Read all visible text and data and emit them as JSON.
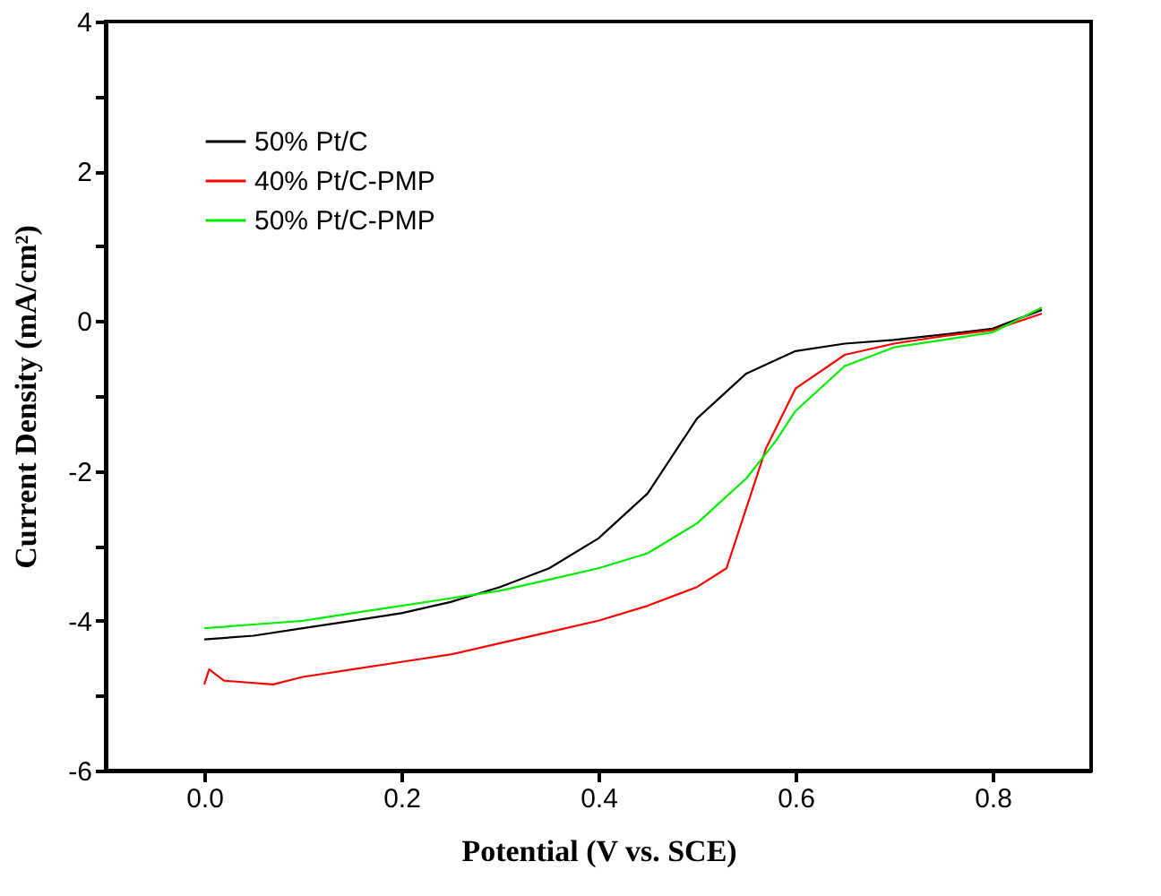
{
  "chart_data": {
    "type": "line",
    "xlabel": "Potential (V vs. SCE)",
    "ylabel": "Current Density (mA/cm²)",
    "xlim": [
      -0.1,
      0.9
    ],
    "xticks": [
      {
        "value": 0,
        "label": "0.0"
      },
      0.2,
      0.4,
      0.6,
      0.8
    ],
    "ylim": [
      -6,
      4
    ],
    "yticks": [
      -6,
      {
        "value": -5,
        "label": null
      },
      -4,
      {
        "value": -3,
        "label": null
      },
      -2,
      {
        "value": -1,
        "label": null
      },
      0,
      {
        "value": 1,
        "label": null
      },
      2,
      {
        "value": 3,
        "label": null
      },
      4
    ],
    "grid": false,
    "legend": "top left",
    "line_style": "solid",
    "marker": "none",
    "series": [
      {
        "name": "50% Pt/C",
        "color": "#000000",
        "x": [
          0.0,
          0.05,
          0.1,
          0.15,
          0.2,
          0.25,
          0.3,
          0.35,
          0.4,
          0.45,
          0.5,
          0.55,
          0.6,
          0.65,
          0.7,
          0.75,
          0.8,
          0.85
        ],
        "values": [
          -4.25,
          -4.2,
          -4.1,
          -4.0,
          -3.9,
          -3.75,
          -3.55,
          -3.3,
          -2.9,
          -2.3,
          -1.3,
          -0.7,
          -0.4,
          -0.3,
          -0.25,
          -0.18,
          -0.1,
          0.15
        ]
      },
      {
        "name": "40% Pt/C-PMP",
        "color": "#ff0000",
        "x": [
          0.0,
          0.005,
          0.02,
          0.07,
          0.1,
          0.15,
          0.2,
          0.25,
          0.3,
          0.35,
          0.4,
          0.45,
          0.5,
          0.53,
          0.55,
          0.57,
          0.6,
          0.65,
          0.7,
          0.75,
          0.8,
          0.85
        ],
        "values": [
          -4.85,
          -4.65,
          -4.8,
          -4.85,
          -4.75,
          -4.65,
          -4.55,
          -4.45,
          -4.3,
          -4.15,
          -4.0,
          -3.8,
          -3.55,
          -3.3,
          -2.5,
          -1.7,
          -0.9,
          -0.45,
          -0.3,
          -0.2,
          -0.12,
          0.1
        ]
      },
      {
        "name": "50% Pt/C-PMP",
        "color": "#00ee00",
        "x": [
          0.0,
          0.05,
          0.1,
          0.15,
          0.2,
          0.25,
          0.3,
          0.35,
          0.4,
          0.45,
          0.5,
          0.55,
          0.58,
          0.6,
          0.65,
          0.7,
          0.75,
          0.8,
          0.85
        ],
        "values": [
          -4.1,
          -4.05,
          -4.0,
          -3.9,
          -3.8,
          -3.7,
          -3.6,
          -3.45,
          -3.3,
          -3.1,
          -2.7,
          -2.1,
          -1.6,
          -1.2,
          -0.6,
          -0.35,
          -0.25,
          -0.15,
          0.18
        ]
      }
    ]
  }
}
